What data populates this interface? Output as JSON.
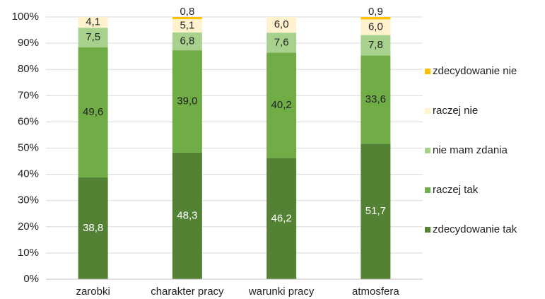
{
  "chart_data": {
    "type": "stacked_bar",
    "categories": [
      "zarobki",
      "charakter pracy",
      "warunki pracy",
      "atmosfera"
    ],
    "series": [
      {
        "name": "zdecydowanie tak",
        "color": "#548235",
        "values": [
          38.8,
          48.3,
          46.2,
          51.7
        ],
        "value_labels": [
          "38,8",
          "48,3",
          "46,2",
          "51,7"
        ]
      },
      {
        "name": "raczej tak",
        "color": "#70ad47",
        "values": [
          49.6,
          39.0,
          40.2,
          33.6
        ],
        "value_labels": [
          "49,6",
          "39,0",
          "40,2",
          "33,6"
        ]
      },
      {
        "name": "nie mam zdania",
        "color": "#a9d18e",
        "values": [
          7.5,
          6.8,
          7.6,
          7.8
        ],
        "value_labels": [
          "7,5",
          "6,8",
          "7,6",
          "7,8"
        ]
      },
      {
        "name": "raczej nie",
        "color": "#fff2cc",
        "values": [
          4.1,
          5.1,
          6.0,
          6.0
        ],
        "value_labels": [
          "4,1",
          "5,1",
          "6,0",
          "6,0"
        ]
      },
      {
        "name": "zdecydowanie nie",
        "color": "#ffc000",
        "values": [
          null,
          0.8,
          null,
          0.9
        ],
        "value_labels": [
          null,
          "0,8",
          null,
          "0,9"
        ]
      }
    ],
    "ylim": [
      0,
      100
    ],
    "yticks": [
      {
        "value": 0,
        "label": "0%"
      },
      {
        "value": 10,
        "label": "10%"
      },
      {
        "value": 20,
        "label": "20%"
      },
      {
        "value": 30,
        "label": "30%"
      },
      {
        "value": 40,
        "label": "40%"
      },
      {
        "value": 50,
        "label": "50%"
      },
      {
        "value": 60,
        "label": "60%"
      },
      {
        "value": 70,
        "label": "70%"
      },
      {
        "value": 80,
        "label": "80%"
      },
      {
        "value": 90,
        "label": "90%"
      },
      {
        "value": 100,
        "label": "100%"
      }
    ],
    "grid": true,
    "legend": "right"
  }
}
